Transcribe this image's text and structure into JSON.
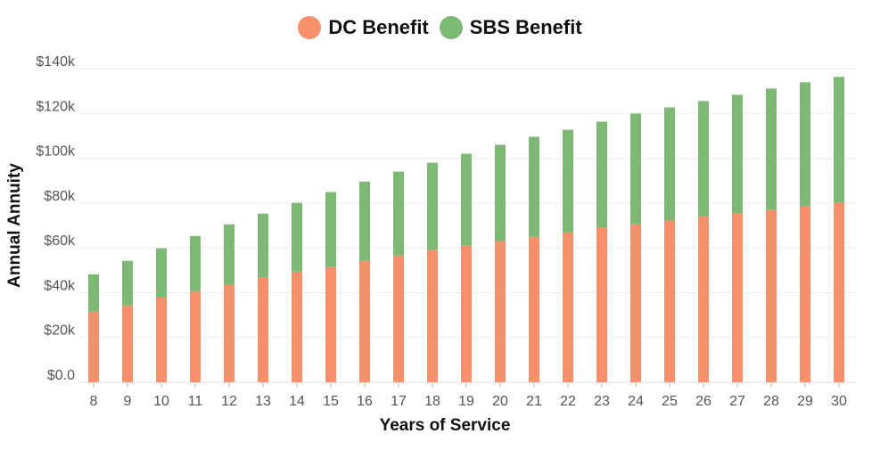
{
  "chart_data": {
    "type": "bar",
    "stacked": true,
    "title": "",
    "xlabel": "Years of Service",
    "ylabel": "Annual Annuity",
    "ylim": [
      0,
      140000
    ],
    "yticks": [
      0,
      20000,
      40000,
      60000,
      80000,
      100000,
      120000,
      140000
    ],
    "ytick_labels": [
      "$0.0",
      "$20k",
      "$40k",
      "$60k",
      "$80k",
      "$100k",
      "$120k",
      "$140k"
    ],
    "grid": true,
    "legend_position": "top-center",
    "categories": [
      "8",
      "9",
      "10",
      "11",
      "12",
      "13",
      "14",
      "15",
      "16",
      "17",
      "18",
      "19",
      "20",
      "21",
      "22",
      "23",
      "24",
      "25",
      "26",
      "27",
      "28",
      "29",
      "30"
    ],
    "series": [
      {
        "name": "DC Benefit",
        "color": "#f7906b",
        "values": [
          31500,
          34300,
          37800,
          40600,
          43400,
          46600,
          49400,
          51400,
          54200,
          56600,
          59000,
          61000,
          63000,
          64900,
          66900,
          68900,
          70500,
          72100,
          74100,
          75300,
          76900,
          78500,
          80100
        ]
      },
      {
        "name": "SBS Benefit",
        "color": "#7db874",
        "values": [
          16700,
          19900,
          22000,
          24700,
          27100,
          28700,
          30700,
          33500,
          35400,
          37400,
          39000,
          41000,
          43000,
          44700,
          45800,
          47400,
          49400,
          50600,
          51400,
          53000,
          54200,
          55400,
          56200
        ]
      }
    ]
  },
  "legend": {
    "items": [
      {
        "label": "DC Benefit",
        "color": "#f7906b"
      },
      {
        "label": "SBS Benefit",
        "color": "#7db874"
      }
    ]
  }
}
